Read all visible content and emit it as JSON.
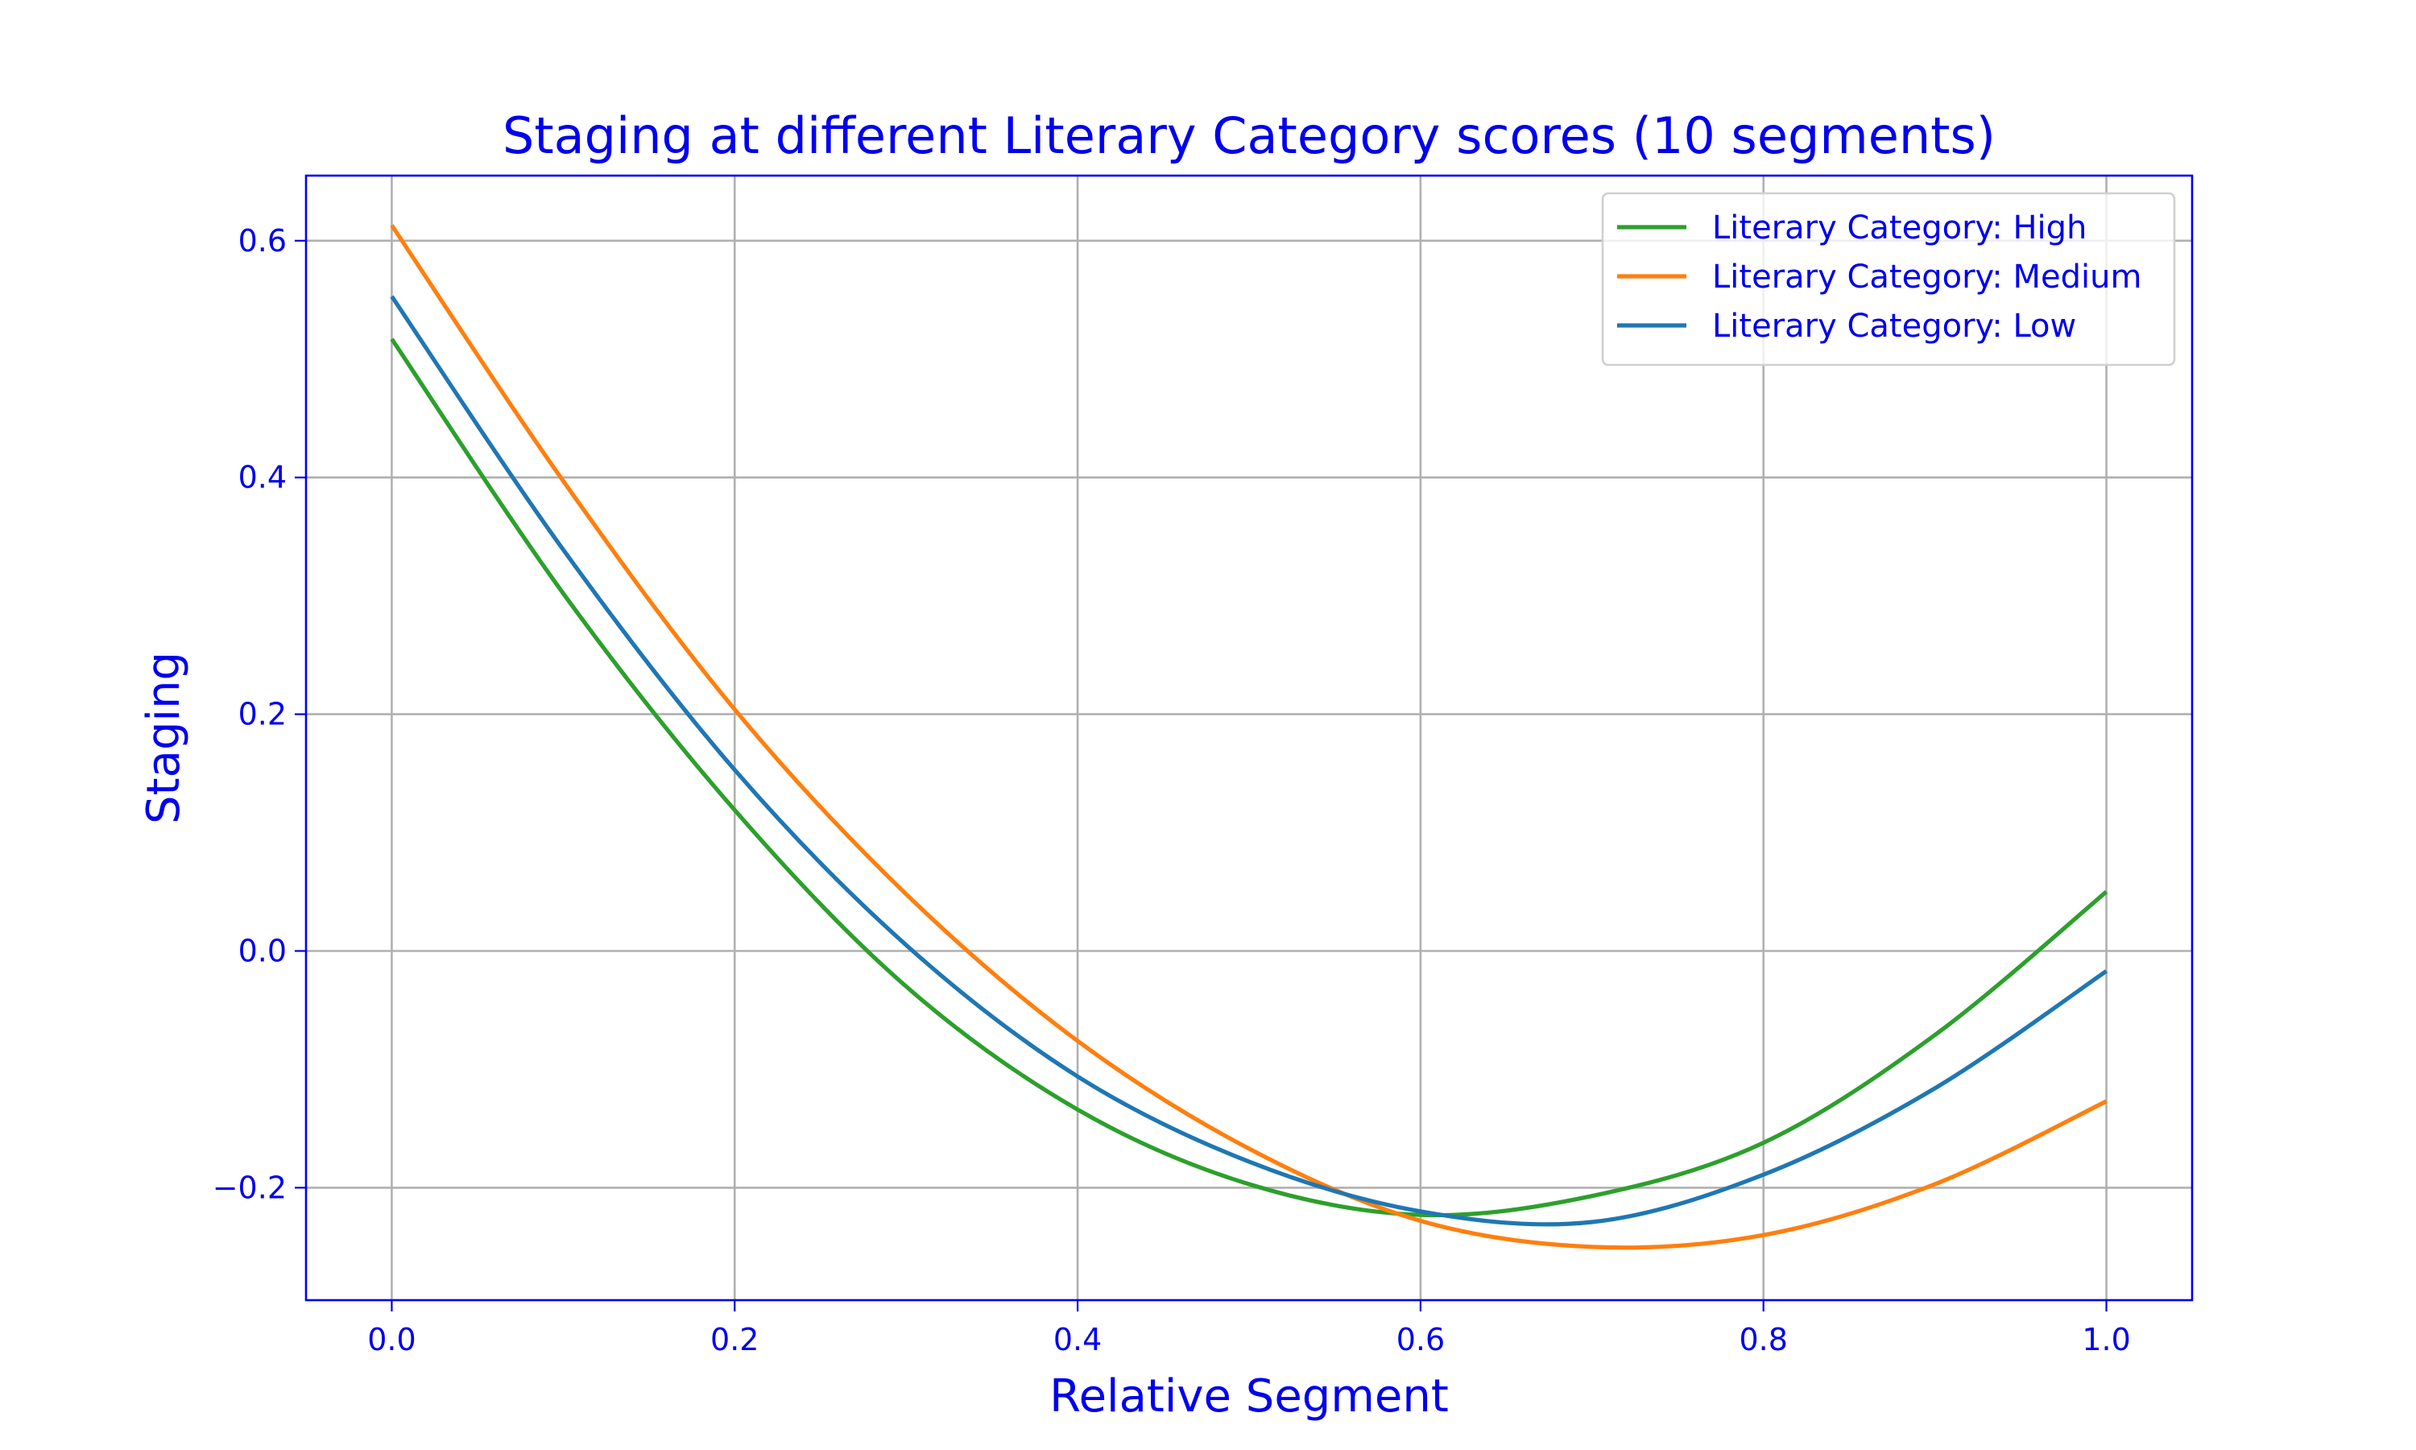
{
  "chart_data": {
    "type": "line",
    "title": "Staging at different Literary Category scores (10 segments)",
    "xlabel": "Relative Segment",
    "ylabel": "Staging",
    "xlim": [
      -0.05,
      1.05
    ],
    "ylim": [
      -0.295,
      0.655
    ],
    "xticks": [
      0.0,
      0.2,
      0.4,
      0.6,
      0.8,
      1.0
    ],
    "xtick_labels": [
      "0.0",
      "0.2",
      "0.4",
      "0.6",
      "0.8",
      "1.0"
    ],
    "yticks": [
      -0.2,
      0.0,
      0.2,
      0.4,
      0.6
    ],
    "ytick_labels": [
      "−0.2",
      "0.0",
      "0.2",
      "0.4",
      "0.6"
    ],
    "grid": true,
    "legend_position": "top-right",
    "x": [
      0.0,
      0.1,
      0.2,
      0.3,
      0.4,
      0.5,
      0.6,
      0.7,
      0.8,
      0.9,
      1.0
    ],
    "series": [
      {
        "name": "Literary Category: High",
        "color": "#2ca02c",
        "values": [
          0.517,
          0.302,
          0.119,
          -0.03,
          -0.134,
          -0.197,
          -0.223,
          -0.207,
          -0.162,
          -0.071,
          0.05
        ]
      },
      {
        "name": "Literary Category: Medium",
        "color": "#ff7f0e",
        "values": [
          0.613,
          0.397,
          0.204,
          0.048,
          -0.076,
          -0.167,
          -0.228,
          -0.25,
          -0.24,
          -0.197,
          -0.127
        ]
      },
      {
        "name": "Literary Category: Low",
        "color": "#1f77b4",
        "values": [
          0.553,
          0.339,
          0.153,
          0.005,
          -0.106,
          -0.178,
          -0.22,
          -0.229,
          -0.189,
          -0.116,
          -0.017
        ]
      }
    ]
  }
}
